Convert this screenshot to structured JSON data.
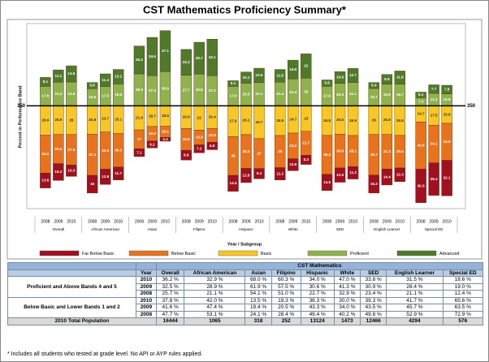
{
  "chart_data": {
    "type": "bar",
    "title": "CST Mathematics Proficiency Summary*",
    "y_label": "Percent in Performance Band",
    "x_label": "Year / Subgroup",
    "reference_label": "350",
    "groups": [
      "Overall",
      "African American",
      "Asian",
      "Filipino",
      "Hispanic",
      "White",
      "SED",
      "English Learner",
      "Special ED"
    ],
    "years": [
      "2008",
      "2009",
      "2010"
    ],
    "ylim": [
      -90,
      70
    ],
    "series": [
      {
        "name": "Far Below Basic",
        "color": "#a0101e",
        "stack": "down",
        "values": [
          13.5,
          15.2,
          10.3,
          16.0,
          13.8,
          11.7,
          7.1,
          6.2,
          3.4,
          8.8,
          7.2,
          6.8,
          14.4,
          12.8,
          9.3,
          11.2,
          10.8,
          8.3,
          14.6,
          12.9,
          11.2,
          16.2,
          14.4,
          12.3,
          30.3,
          29.4,
          32.1
        ]
      },
      {
        "name": "Below Basic",
        "color": "#e8731c",
        "stack": "down",
        "values": [
          34.2,
          26.4,
          27.5,
          37.1,
          33.6,
          30.3,
          17.0,
          13.2,
          10.1,
          19.6,
          13.3,
          12.5,
          35.0,
          30.5,
          27.0,
          29.0,
          23.2,
          21.7,
          35.2,
          30.6,
          28.1,
          36.7,
          31.3,
          29.4,
          42.6,
          34.1,
          33.5
        ]
      },
      {
        "name": "Basic",
        "color": "#f8c625",
        "stack": "down",
        "values": [
          26.6,
          25.9,
          26.0,
          25.8,
          23.7,
          25.1,
          21.8,
          18.7,
          18.5,
          20.6,
          22.0,
          20.4,
          27.9,
          26.1,
          29.7,
          26.9,
          24.7,
          23.0,
          26.8,
          25.6,
          26.9,
          26.0,
          25.9,
          26.8,
          14.7,
          17.5,
          15.8
        ]
      },
      {
        "name": "Proficient",
        "color": "#8fb24c",
        "stack": "up",
        "values": [
          17.6,
          21.4,
          21.6,
          15.5,
          17.5,
          19.8,
          28.9,
          27.3,
          30.9,
          27.7,
          28.8,
          27.2,
          17.6,
          20.5,
          21.1,
          21.4,
          24.4,
          25.0,
          17.6,
          20.3,
          21.1,
          15.7,
          19.6,
          19.7,
          7.3,
          11.3,
          10.8
        ]
      },
      {
        "name": "Advanced",
        "color": "#4e7a29",
        "stack": "up",
        "values": [
          8.1,
          11.1,
          14.6,
          5.6,
          11.4,
          13.1,
          25.2,
          34.6,
          37.1,
          23.3,
          28.7,
          33.1,
          5.1,
          10.1,
          12.9,
          11.5,
          16.9,
          22.0,
          5.8,
          10.6,
          12.7,
          5.4,
          8.8,
          11.8,
          5.1,
          7.7,
          7.8
        ]
      }
    ]
  },
  "table": {
    "title": "CST Mathematics",
    "columns": [
      "Year",
      "Overall",
      "African American",
      "Asian",
      "Filipino",
      "Hispanic",
      "White",
      "SED",
      "English Learner",
      "Special ED"
    ],
    "row_groups": [
      {
        "label": "Proficient and Above Bands 4 and 5",
        "rows": [
          [
            "2010",
            "36.2 %",
            "32.9 %",
            "68.0 %",
            "60.3 %",
            "34.0 %",
            "47.0 %",
            "33.8 %",
            "31.5 %",
            "18.6 %"
          ],
          [
            "2009",
            "32.5 %",
            "28.9 %",
            "61.9 %",
            "57.5 %",
            "30.6 %",
            "41.3 %",
            "30.9 %",
            "28.4 %",
            "19.0 %"
          ],
          [
            "2008",
            "25.7 %",
            "21.1 %",
            "54.1 %",
            "51.0 %",
            "22.7 %",
            "32.9 %",
            "23.4 %",
            "21.1 %",
            "12.4 %"
          ]
        ]
      },
      {
        "label": "Below Basic and Lower Bands 1 and 2",
        "rows": [
          [
            "2010",
            "37.8 %",
            "42.0 %",
            "13.5 %",
            "19.3 %",
            "36.3 %",
            "30.0 %",
            "39.3 %",
            "41.7 %",
            "65.6 %"
          ],
          [
            "2009",
            "41.6 %",
            "47.4 %",
            "19.4 %",
            "20.5 %",
            "43.3 %",
            "34.0 %",
            "43.5 %",
            "45.7 %",
            "63.5 %"
          ],
          [
            "2008",
            "47.7 %",
            "53.1 %",
            "24.1 %",
            "28.4 %",
            "49.4 %",
            "40.2 %",
            "49.8 %",
            "52.9 %",
            "72.9 %"
          ]
        ]
      }
    ],
    "total": {
      "label": "2010 Total Population",
      "values": [
        "16444",
        "1065",
        "318",
        "252",
        "13124",
        "1473",
        "12466",
        "4294",
        "576"
      ]
    }
  },
  "footnote": "* Includes all students who tested at grade level. No API or AYP rules applied."
}
